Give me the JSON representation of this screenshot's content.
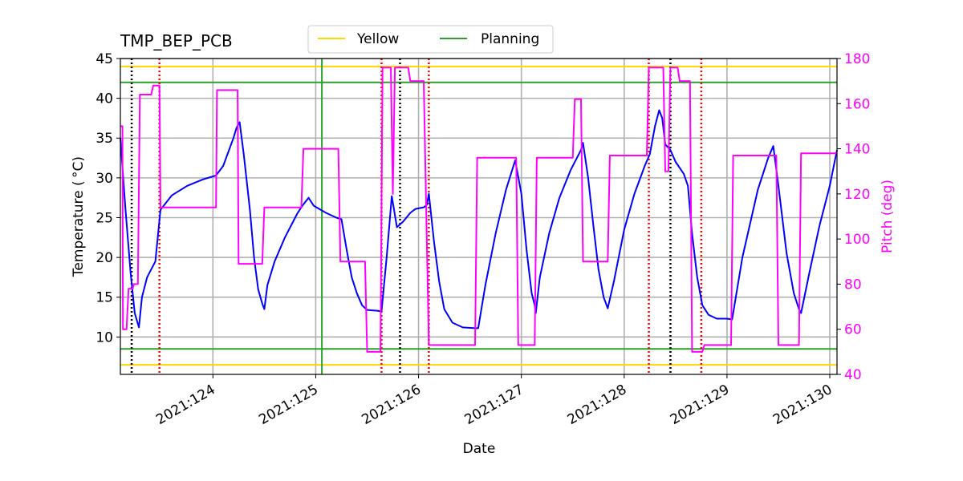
{
  "chart_data": {
    "type": "line",
    "title": "TMP_BEP_PCB",
    "xlabel": "Date",
    "ylabel": "Temperature ($^\\circ$C)",
    "ylabel_display": "Temperature ( °C)",
    "y2label": "Pitch (deg)",
    "xlim": [
      123.1,
      130.07
    ],
    "ylim": [
      5.3,
      45
    ],
    "y2lim": [
      40,
      180
    ],
    "x_ticks": [
      {
        "value": 124,
        "label": "2021:124"
      },
      {
        "value": 125,
        "label": "2021:125"
      },
      {
        "value": 126,
        "label": "2021:126"
      },
      {
        "value": 127,
        "label": "2021:127"
      },
      {
        "value": 128,
        "label": "2021:128"
      },
      {
        "value": 129,
        "label": "2021:129"
      },
      {
        "value": 130,
        "label": "2021:130"
      }
    ],
    "y_ticks": [
      10,
      15,
      20,
      25,
      30,
      35,
      40,
      45
    ],
    "y2_ticks": [
      40,
      60,
      80,
      100,
      120,
      140,
      160,
      180
    ],
    "grid": true,
    "legend": {
      "placement": "top-center",
      "entries": [
        {
          "name": "Yellow",
          "color": "#FFD700"
        },
        {
          "name": "Planning",
          "color": "#2CA02C"
        }
      ]
    },
    "hlines": [
      {
        "y": 44,
        "color": "#FFD700",
        "legend": "Yellow"
      },
      {
        "y": 6.5,
        "color": "#FFD700",
        "legend": "Yellow"
      },
      {
        "y": 42,
        "color": "#2CA02C",
        "legend": "Planning"
      },
      {
        "y": 8.5,
        "color": "#2CA02C",
        "legend": "Planning"
      }
    ],
    "vlines": [
      {
        "x": 125.06,
        "color": "#2CA02C",
        "style": "solid"
      },
      {
        "x": 123.21,
        "color": "#000000",
        "style": "dotted"
      },
      {
        "x": 125.82,
        "color": "#000000",
        "style": "dotted"
      },
      {
        "x": 128.45,
        "color": "#000000",
        "style": "dotted"
      },
      {
        "x": 123.48,
        "color": "#FF0000",
        "style": "dotted"
      },
      {
        "x": 125.64,
        "color": "#FF0000",
        "style": "dotted"
      },
      {
        "x": 126.1,
        "color": "#FF0000",
        "style": "dotted"
      },
      {
        "x": 128.24,
        "color": "#FF0000",
        "style": "dotted"
      },
      {
        "x": 128.75,
        "color": "#FF0000",
        "style": "dotted"
      }
    ],
    "series": [
      {
        "axis": "left",
        "color": "#0000FF",
        "points": [
          [
            123.1,
            35.0
          ],
          [
            123.15,
            26.0
          ],
          [
            123.2,
            18.0
          ],
          [
            123.24,
            13.0
          ],
          [
            123.28,
            11.2
          ],
          [
            123.31,
            15.0
          ],
          [
            123.36,
            17.5
          ],
          [
            123.44,
            19.5
          ],
          [
            123.49,
            26.0
          ],
          [
            123.6,
            27.8
          ],
          [
            123.75,
            29.0
          ],
          [
            123.9,
            29.8
          ],
          [
            124.03,
            30.3
          ],
          [
            124.1,
            31.5
          ],
          [
            124.2,
            35.0
          ],
          [
            124.23,
            36.3
          ],
          [
            124.26,
            37.0
          ],
          [
            124.3,
            33.0
          ],
          [
            124.36,
            26.0
          ],
          [
            124.4,
            20.0
          ],
          [
            124.44,
            16.0
          ],
          [
            124.48,
            14.2
          ],
          [
            124.5,
            13.5
          ],
          [
            124.53,
            16.5
          ],
          [
            124.6,
            19.5
          ],
          [
            124.7,
            22.5
          ],
          [
            124.82,
            25.5
          ],
          [
            124.87,
            26.5
          ],
          [
            124.93,
            27.5
          ],
          [
            124.98,
            26.5
          ],
          [
            125.1,
            25.6
          ],
          [
            125.2,
            25.0
          ],
          [
            125.25,
            24.8
          ],
          [
            125.3,
            21.0
          ],
          [
            125.35,
            17.5
          ],
          [
            125.4,
            15.5
          ],
          [
            125.45,
            14.0
          ],
          [
            125.5,
            13.4
          ],
          [
            125.6,
            13.3
          ],
          [
            125.64,
            13.2
          ],
          [
            125.69,
            20.0
          ],
          [
            125.74,
            27.7
          ],
          [
            125.79,
            23.8
          ],
          [
            125.85,
            24.5
          ],
          [
            125.92,
            25.6
          ],
          [
            125.97,
            26.1
          ],
          [
            126.05,
            26.3
          ],
          [
            126.08,
            26.6
          ],
          [
            126.1,
            28.0
          ],
          [
            126.15,
            22.0
          ],
          [
            126.2,
            17.0
          ],
          [
            126.25,
            13.5
          ],
          [
            126.33,
            11.8
          ],
          [
            126.43,
            11.2
          ],
          [
            126.55,
            11.1
          ],
          [
            126.58,
            11.1
          ],
          [
            126.65,
            16.5
          ],
          [
            126.75,
            23.0
          ],
          [
            126.85,
            28.5
          ],
          [
            126.94,
            32.2
          ],
          [
            127.0,
            28.0
          ],
          [
            127.05,
            21.0
          ],
          [
            127.1,
            15.5
          ],
          [
            127.13,
            14.0
          ],
          [
            127.14,
            13.0
          ],
          [
            127.18,
            17.5
          ],
          [
            127.27,
            23.0
          ],
          [
            127.37,
            27.5
          ],
          [
            127.48,
            31.0
          ],
          [
            127.58,
            33.5
          ],
          [
            127.6,
            34.4
          ],
          [
            127.65,
            30.0
          ],
          [
            127.7,
            24.0
          ],
          [
            127.75,
            18.5
          ],
          [
            127.8,
            15.0
          ],
          [
            127.84,
            13.6
          ],
          [
            127.9,
            17.0
          ],
          [
            128.0,
            23.5
          ],
          [
            128.1,
            28.0
          ],
          [
            128.2,
            31.5
          ],
          [
            128.25,
            33.0
          ],
          [
            128.3,
            36.5
          ],
          [
            128.34,
            38.5
          ],
          [
            128.37,
            37.5
          ],
          [
            128.4,
            34.2
          ],
          [
            128.45,
            33.5
          ],
          [
            128.5,
            32.0
          ],
          [
            128.58,
            30.5
          ],
          [
            128.62,
            29.0
          ],
          [
            128.66,
            23.0
          ],
          [
            128.71,
            17.5
          ],
          [
            128.76,
            14.0
          ],
          [
            128.82,
            12.8
          ],
          [
            128.9,
            12.3
          ],
          [
            129.0,
            12.3
          ],
          [
            129.05,
            12.2
          ],
          [
            129.15,
            20.0
          ],
          [
            129.3,
            28.5
          ],
          [
            129.4,
            32.5
          ],
          [
            129.45,
            34.0
          ],
          [
            129.5,
            29.0
          ],
          [
            129.58,
            20.5
          ],
          [
            129.65,
            15.5
          ],
          [
            129.7,
            13.5
          ],
          [
            129.72,
            13.0
          ],
          [
            129.8,
            18.0
          ],
          [
            129.9,
            24.0
          ],
          [
            130.0,
            29.0
          ],
          [
            130.07,
            33.5
          ]
        ]
      },
      {
        "axis": "right",
        "color": "#FF00FF",
        "points": [
          [
            123.1,
            150
          ],
          [
            123.12,
            150
          ],
          [
            123.125,
            60
          ],
          [
            123.16,
            60
          ],
          [
            123.18,
            78
          ],
          [
            123.22,
            78
          ],
          [
            123.23,
            80
          ],
          [
            123.27,
            80
          ],
          [
            123.29,
            164
          ],
          [
            123.4,
            164
          ],
          [
            123.42,
            168
          ],
          [
            123.48,
            168
          ],
          [
            123.49,
            114
          ],
          [
            124.03,
            114
          ],
          [
            124.04,
            166
          ],
          [
            124.24,
            166
          ],
          [
            124.25,
            89
          ],
          [
            124.48,
            89
          ],
          [
            124.5,
            114
          ],
          [
            124.86,
            114
          ],
          [
            124.88,
            140
          ],
          [
            125.22,
            140
          ],
          [
            125.24,
            90
          ],
          [
            125.48,
            90
          ],
          [
            125.5,
            50
          ],
          [
            125.63,
            50
          ],
          [
            125.65,
            176
          ],
          [
            125.73,
            176
          ],
          [
            125.75,
            120
          ],
          [
            125.77,
            176
          ],
          [
            125.85,
            176
          ],
          [
            125.9,
            176
          ],
          [
            125.92,
            170
          ],
          [
            126.05,
            170
          ],
          [
            126.1,
            53
          ],
          [
            126.55,
            53
          ],
          [
            126.57,
            136
          ],
          [
            126.95,
            136
          ],
          [
            126.97,
            53
          ],
          [
            127.13,
            53
          ],
          [
            127.15,
            136
          ],
          [
            127.5,
            136
          ],
          [
            127.52,
            162
          ],
          [
            127.58,
            162
          ],
          [
            127.6,
            90
          ],
          [
            127.84,
            90
          ],
          [
            127.86,
            137
          ],
          [
            128.22,
            137
          ],
          [
            128.24,
            176
          ],
          [
            128.38,
            176
          ],
          [
            128.4,
            130
          ],
          [
            128.43,
            130
          ],
          [
            128.45,
            176
          ],
          [
            128.52,
            176
          ],
          [
            128.54,
            170
          ],
          [
            128.64,
            170
          ],
          [
            128.66,
            50
          ],
          [
            128.76,
            50
          ],
          [
            128.78,
            53
          ],
          [
            129.04,
            53
          ],
          [
            129.06,
            137
          ],
          [
            129.48,
            137
          ],
          [
            129.5,
            53
          ],
          [
            129.7,
            53
          ],
          [
            129.72,
            138
          ],
          [
            130.07,
            138
          ]
        ]
      }
    ]
  }
}
